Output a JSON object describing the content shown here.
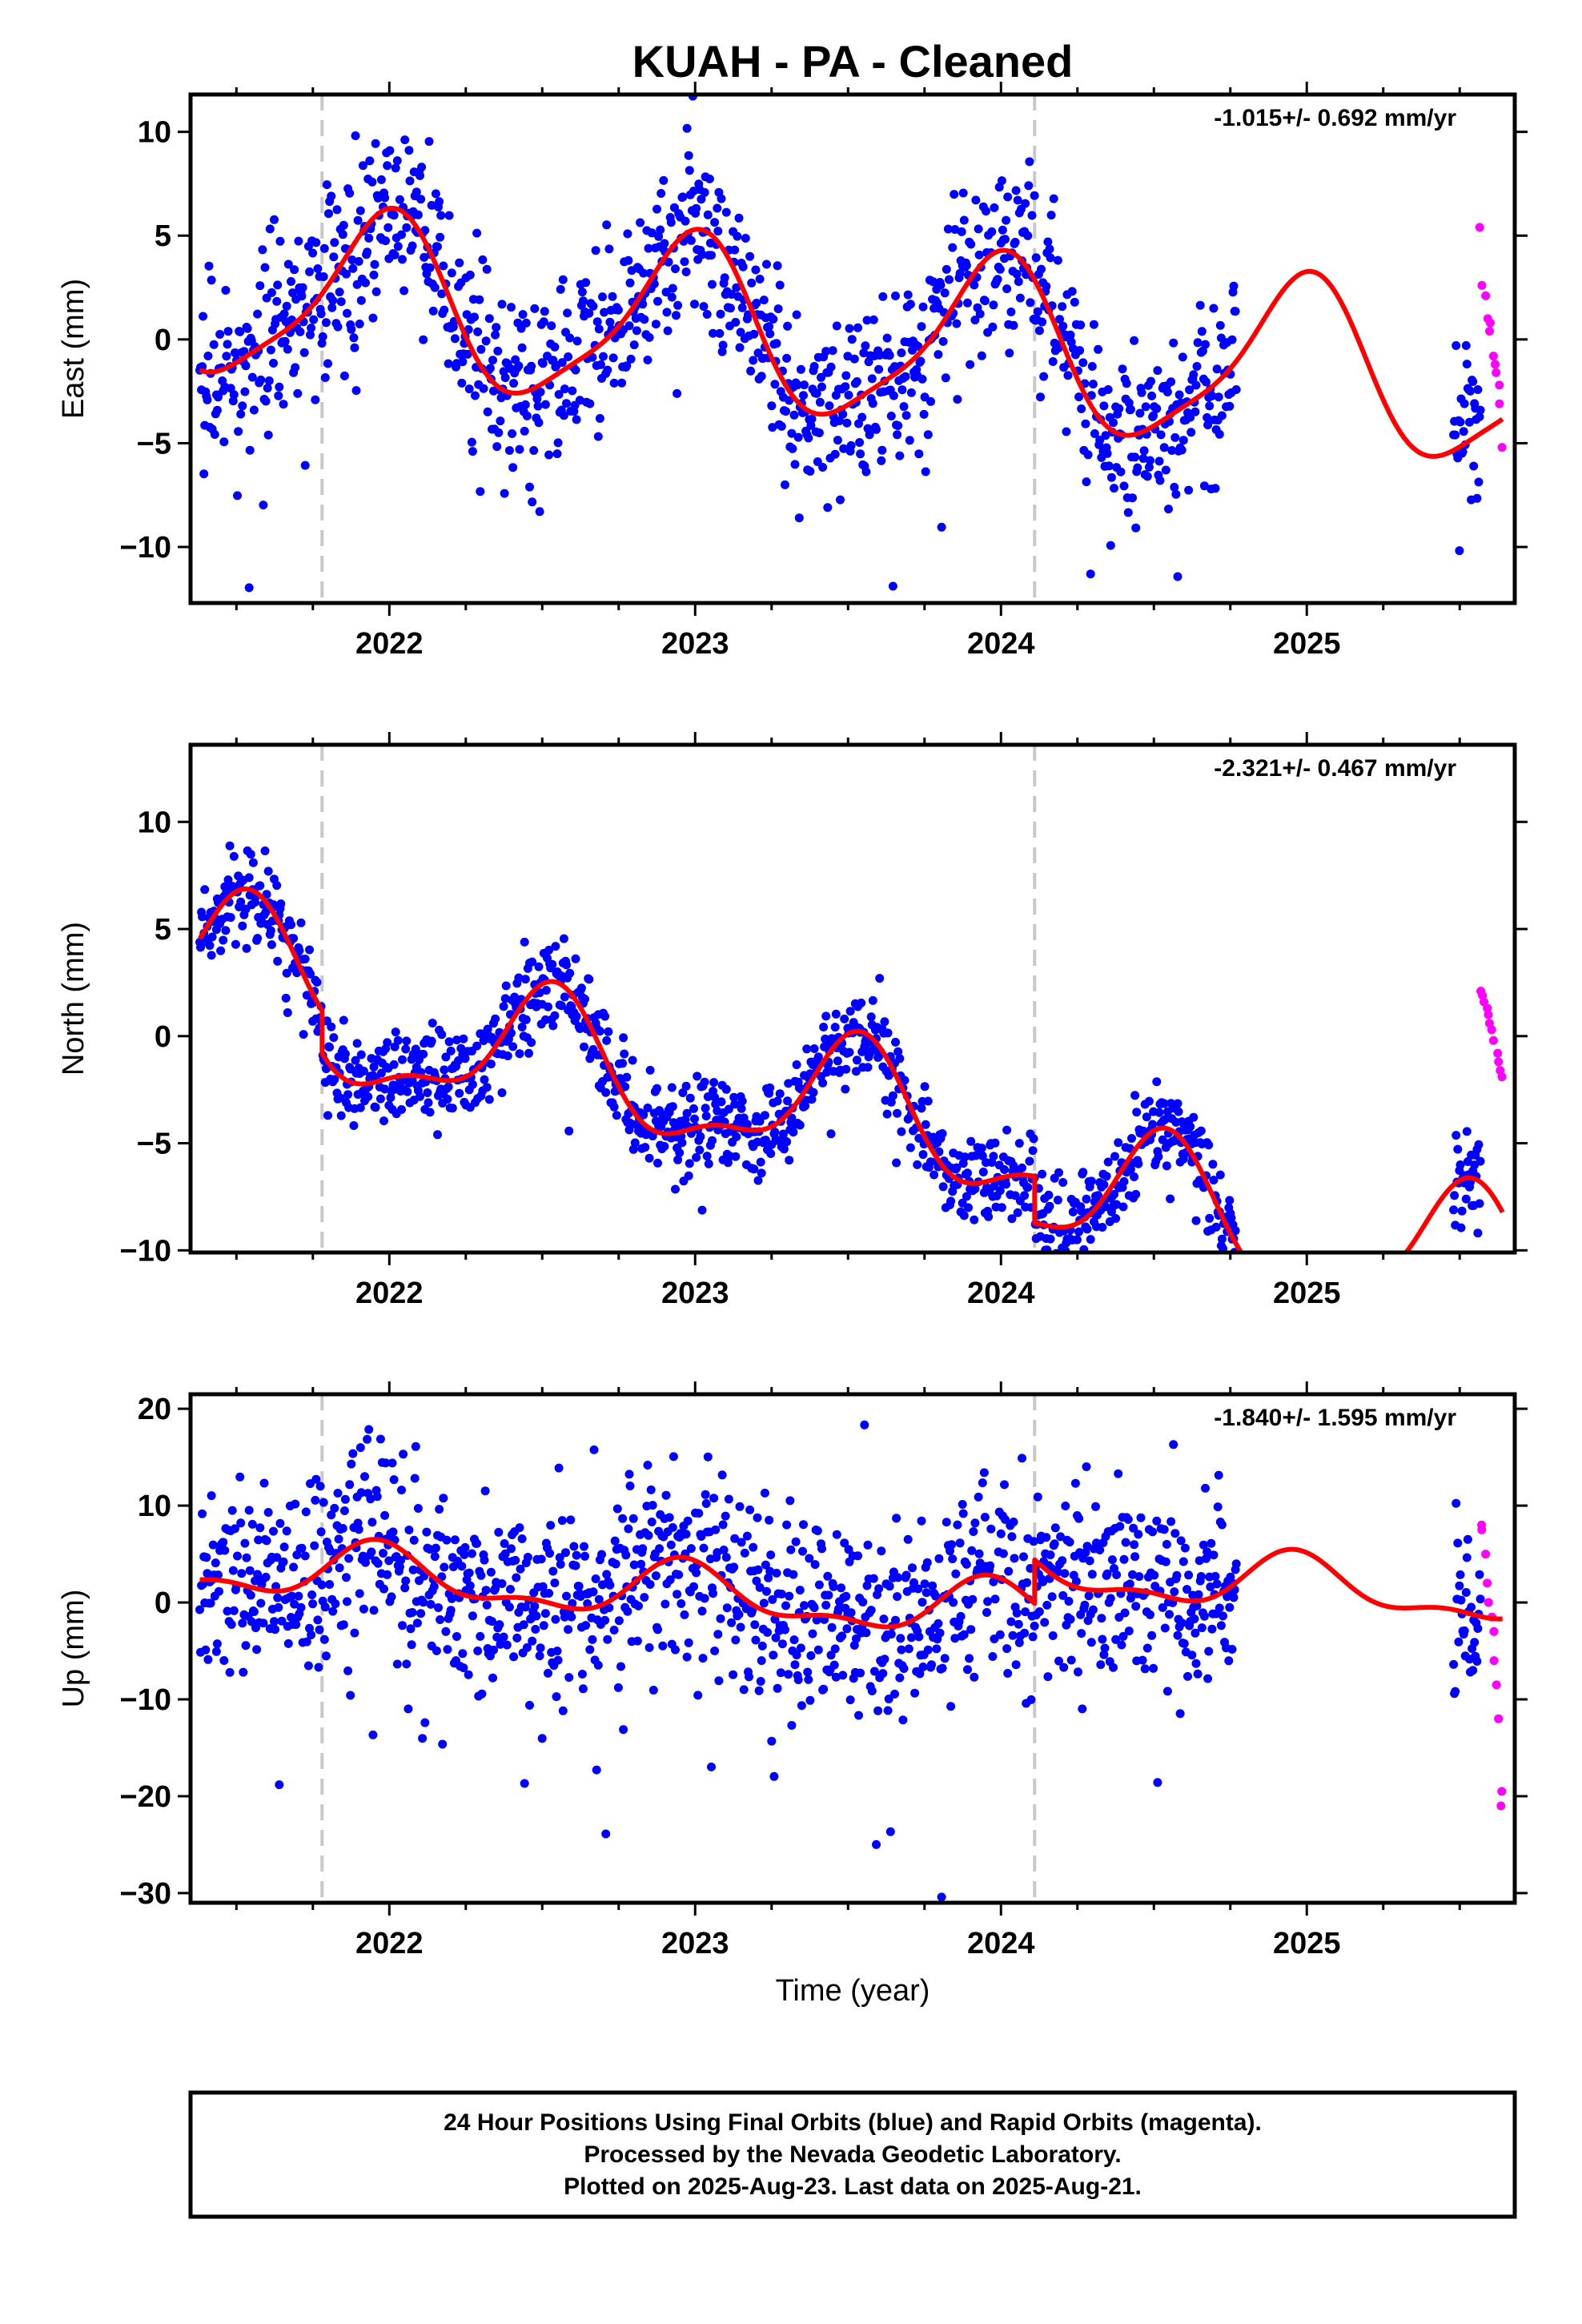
{
  "title": "KUAH  - PA - Cleaned",
  "xlabel": "Time (year)",
  "footer": {
    "line1": "24 Hour Positions Using Final Orbits (blue) and Rapid Orbits (magenta).",
    "line2": "Processed by the Nevada Geodetic Laboratory.",
    "line3": "Plotted on 2025-Aug-23. Last data on 2025-Aug-21."
  },
  "colors": {
    "final": "#0000ff",
    "rapid": "#ff00ff",
    "model": "#ff0000",
    "breaks": "#c8c8c8"
  },
  "chart_data": [
    {
      "type": "scatter",
      "panel": "east",
      "ylabel": "East (mm)",
      "rate_label": "-1.015+/- 0.692 mm/yr",
      "xlim": [
        2021.35,
        2025.68
      ],
      "ylim": [
        -12.7,
        11.8
      ],
      "xticks": [
        "2022",
        "2023",
        "2024",
        "2025"
      ],
      "yticks": [
        -10,
        -5,
        0,
        5,
        10
      ],
      "breaks": [
        2021.78,
        2024.11
      ],
      "final_x": [
        2021.38,
        2024.77
      ],
      "rapid_x": [
        2025.57,
        2025.64
      ],
      "model": {
        "trend_slope": -1.015,
        "offset": 0.6,
        "ref_year": 2023.0,
        "amp1": 4.0,
        "phase_peak1": 2021.98,
        "amp2": 0.9,
        "phase_peak2": 2022.05,
        "steps": [
          {
            "t": 2021.78,
            "size": 0.0
          },
          {
            "t": 2024.11,
            "size": 0.0
          }
        ]
      },
      "point_scatter": 2.2,
      "rapid_values": [
        5.4,
        2.6,
        2.1,
        1.0,
        0.8,
        0.4,
        -0.8,
        -1.2,
        -1.6,
        -2.2,
        -3.1,
        -5.2
      ]
    },
    {
      "type": "scatter",
      "panel": "north",
      "ylabel": "North (mm)",
      "rate_label": "-2.321+/- 0.467 mm/yr",
      "xlim": [
        2021.35,
        2025.68
      ],
      "ylim": [
        -10.1,
        13.6
      ],
      "xticks": [
        "2022",
        "2023",
        "2024",
        "2025"
      ],
      "yticks": [
        -10,
        -5,
        0,
        5,
        10
      ],
      "breaks": [
        2021.78,
        2024.11
      ],
      "final_x": [
        2021.38,
        2024.77
      ],
      "rapid_x": [
        2025.57,
        2025.64
      ],
      "model": {
        "trend_slope": -2.321,
        "offset": -0.4,
        "ref_year": 2023.0,
        "amp1": 2.8,
        "phase_peak1": 2021.52,
        "amp2": 1.1,
        "phase_peak2": 2021.55,
        "steps": [
          {
            "t": 2021.78,
            "size": -2.0
          },
          {
            "t": 2024.11,
            "size": -2.2
          }
        ]
      },
      "point_scatter": 1.1,
      "rapid_values": [
        2.1,
        1.9,
        1.6,
        1.3,
        1.0,
        0.6,
        0.3,
        -0.2,
        -0.8,
        -1.2,
        -1.6,
        -1.9
      ]
    },
    {
      "type": "scatter",
      "panel": "up",
      "ylabel": "Up (mm)",
      "rate_label": "-1.840+/- 1.595 mm/yr",
      "xlim": [
        2021.35,
        2025.68
      ],
      "ylim": [
        -31,
        21.5
      ],
      "xticks": [
        "2022",
        "2023",
        "2024",
        "2025"
      ],
      "yticks": [
        -30,
        -20,
        -10,
        0,
        10,
        20
      ],
      "breaks": [
        2021.78,
        2024.11
      ],
      "final_x": [
        2021.38,
        2024.77
      ],
      "rapid_x": [
        2025.57,
        2025.64
      ],
      "model": {
        "trend_slope": -1.84,
        "offset": 0.8,
        "ref_year": 2023.0,
        "amp1": 2.6,
        "phase_peak1": 2021.97,
        "amp2": 1.2,
        "phase_peak2": 2021.95,
        "steps": [
          {
            "t": 2021.78,
            "size": 0.0
          },
          {
            "t": 2024.11,
            "size": 4.5
          }
        ]
      },
      "point_scatter": 5.0,
      "rapid_values": [
        8.0,
        7.5,
        5.0,
        2.0,
        0.0,
        -1.5,
        -3.0,
        -6.0,
        -8.5,
        -12.0,
        -19.5,
        -21.0
      ]
    }
  ]
}
